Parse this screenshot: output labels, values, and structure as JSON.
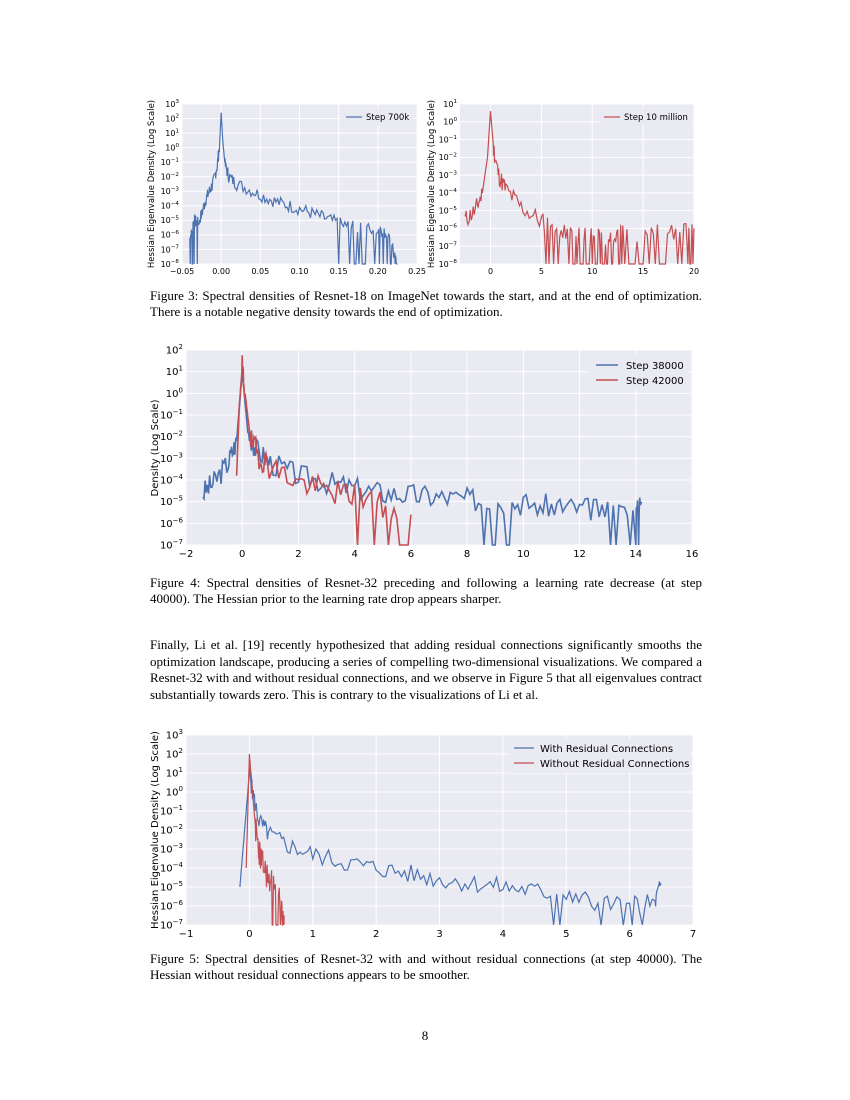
{
  "figure3": {
    "caption": "Figure 3: Spectral densities of Resnet-18 on ImageNet towards the start, and at the end of optimization. There is a notable negative density towards the end of optimization.",
    "left_panel": {
      "ylabel": "Hessian Eigenvalue Density (Log Scale)",
      "legend": "Step 700k",
      "color": "#4c72b0",
      "x_ticks": [
        "-0.05",
        "0.00",
        "0.05",
        "0.10",
        "0.15",
        "0.20",
        "0.25"
      ],
      "y_ticks": [
        "10^-8",
        "10^-7",
        "10^-6",
        "10^-5",
        "10^-4",
        "10^-3",
        "10^-2",
        "10^-1",
        "10^0",
        "10^1",
        "10^2",
        "10^3"
      ]
    },
    "right_panel": {
      "ylabel": "Hessian Eigenvalue Density (Log Scale)",
      "legend": "Step 10 million",
      "color": "#c44e52",
      "x_ticks": [
        "0",
        "5",
        "10",
        "15",
        "20"
      ],
      "y_ticks": [
        "10^-8",
        "10^-7",
        "10^-6",
        "10^-5",
        "10^-4",
        "10^-3",
        "10^-2",
        "10^-1",
        "10^0",
        "10^1"
      ]
    }
  },
  "figure4": {
    "caption": "Figure 4: Spectral densities of Resnet-32 preceding and following a learning rate decrease (at step 40000). The Hessian prior to the learning rate drop appears sharper.",
    "ylabel": "Density (Log Scale)",
    "legend": [
      {
        "label": "Step 38000",
        "color": "#4c72b0"
      },
      {
        "label": "Step 42000",
        "color": "#c44e52"
      }
    ],
    "x_ticks": [
      "-2",
      "0",
      "2",
      "4",
      "6",
      "8",
      "10",
      "12",
      "14",
      "16"
    ],
    "y_ticks": [
      "10^-7",
      "10^-6",
      "10^-5",
      "10^-4",
      "10^-3",
      "10^-2",
      "10^-1",
      "10^0",
      "10^1",
      "10^2"
    ]
  },
  "paragraph": "Finally, Li et al. [19] recently hypothesized that adding residual connections significantly smooths the optimization landscape, producing a series of compelling two-dimensional visualizations. We compared a Resnet-32 with and without residual connections, and we observe in Figure 5 that all eigenvalues contract substantially towards zero. This is contrary to the visualizations of Li et al.",
  "figure5": {
    "caption": "Figure 5: Spectral densities of Resnet-32 with and without residual connections (at step 40000). The Hessian without residual connections appears to be smoother.",
    "ylabel": "Hessian Eigenvalue Density (Log Scale)",
    "legend": [
      {
        "label": "With Residual Connections",
        "color": "#4c72b0"
      },
      {
        "label": "Without Residual Connections",
        "color": "#c44e52"
      }
    ],
    "x_ticks": [
      "-1",
      "0",
      "1",
      "2",
      "3",
      "4",
      "5",
      "6",
      "7"
    ],
    "y_ticks": [
      "10^-7",
      "10^-6",
      "10^-5",
      "10^-4",
      "10^-3",
      "10^-2",
      "10^-1",
      "10^0",
      "10^1",
      "10^2",
      "10^3"
    ]
  },
  "page_number": "8",
  "chart_data": [
    {
      "type": "line",
      "ylabel": "Hessian Eigenvalue Density (Log Scale)",
      "xlim": [
        -0.05,
        0.25
      ],
      "ylim": [
        -8,
        3
      ],
      "yscale": "log",
      "series": [
        {
          "name": "Step 700k",
          "color": "#4c72b0",
          "x": [
            -0.04,
            -0.035,
            -0.03,
            -0.025,
            -0.02,
            -0.015,
            -0.01,
            -0.005,
            -0.002,
            0.0,
            0.002,
            0.005,
            0.01,
            0.02,
            0.04,
            0.06,
            0.08,
            0.1,
            0.12,
            0.14,
            0.16,
            0.18,
            0.2,
            0.21,
            0.22,
            0.225
          ],
          "y": [
            -6.2,
            -5.0,
            -5.2,
            -4.6,
            -3.6,
            -3.0,
            -2.4,
            -1.2,
            0.2,
            2.4,
            0.5,
            -1.2,
            -2.0,
            -2.5,
            -3.0,
            -3.5,
            -3.9,
            -4.2,
            -4.6,
            -5.0,
            -5.4,
            -5.6,
            -5.6,
            -5.8,
            -7.2,
            -8.0
          ]
        }
      ],
      "legend": "top-right"
    },
    {
      "type": "line",
      "ylabel": "Hessian Eigenvalue Density (Log Scale)",
      "xlim": [
        -3,
        20
      ],
      "ylim": [
        -8,
        1
      ],
      "yscale": "log",
      "series": [
        {
          "name": "Step 10 million",
          "color": "#c44e52",
          "x": [
            -2.5,
            -1.5,
            -0.8,
            -0.3,
            0.0,
            0.3,
            0.8,
            1.5,
            3,
            5,
            6.5,
            8,
            9,
            10,
            11,
            12,
            13,
            15,
            17,
            19,
            20
          ],
          "y": [
            -5.5,
            -5.0,
            -4.0,
            -2.0,
            0.6,
            -1.5,
            -3.0,
            -3.8,
            -4.8,
            -5.6,
            -6.0,
            -6.2,
            -6.5,
            -6.3,
            -6.5,
            -6.3,
            -6.3,
            -6.3,
            -6.3,
            -6.3,
            -6.0
          ]
        }
      ],
      "legend": "top-right"
    },
    {
      "type": "line",
      "ylabel": "Density (Log Scale)",
      "xlim": [
        -2,
        16
      ],
      "ylim": [
        -7,
        2
      ],
      "yscale": "log",
      "series": [
        {
          "name": "Step 38000",
          "color": "#4c72b0",
          "x": [
            -1.4,
            -1.0,
            -0.5,
            -0.2,
            0.0,
            0.2,
            0.5,
            1,
            2,
            3,
            4,
            5,
            6,
            7,
            8,
            9,
            10,
            11,
            12,
            13,
            14,
            14.2
          ],
          "y": [
            -4.6,
            -4.1,
            -3.2,
            -2.2,
            1.0,
            -1.8,
            -2.6,
            -3.2,
            -3.8,
            -4.1,
            -4.4,
            -4.6,
            -4.7,
            -4.8,
            -4.9,
            -5.0,
            -5.1,
            -5.2,
            -5.3,
            -5.4,
            -5.6,
            -5.0
          ]
        },
        {
          "name": "Step 42000",
          "color": "#c44e52",
          "x": [
            -0.2,
            -0.1,
            0.0,
            0.1,
            0.3,
            0.6,
            1,
            2,
            3,
            4,
            5,
            6
          ],
          "y": [
            -3.8,
            -0.5,
            1.2,
            0.0,
            -2.2,
            -2.9,
            -3.4,
            -4.1,
            -4.5,
            -4.7,
            -5.2,
            -5.6
          ]
        }
      ],
      "legend": "top-right"
    },
    {
      "type": "line",
      "ylabel": "Hessian Eigenvalue Density (Log Scale)",
      "xlim": [
        -1,
        7
      ],
      "ylim": [
        -7,
        3
      ],
      "yscale": "log",
      "series": [
        {
          "name": "With Residual Connections",
          "color": "#4c72b0",
          "x": [
            -0.15,
            -0.05,
            0.0,
            0.05,
            0.15,
            0.3,
            0.6,
            1,
            1.5,
            2,
            2.5,
            3,
            3.5,
            4,
            4.5,
            5,
            5.5,
            6,
            6.4,
            6.5
          ],
          "y": [
            -5.0,
            -1.0,
            1.0,
            0.0,
            -1.5,
            -2.2,
            -2.8,
            -3.3,
            -3.7,
            -4.0,
            -4.3,
            -4.6,
            -4.8,
            -5.0,
            -5.2,
            -5.5,
            -5.8,
            -6.0,
            -5.8,
            -4.8
          ]
        },
        {
          "name": "Without Residual Connections",
          "color": "#c44e52",
          "x": [
            -0.05,
            0.0,
            0.05,
            0.1,
            0.15,
            0.2,
            0.3,
            0.4,
            0.5,
            0.55
          ],
          "y": [
            -4.0,
            2.0,
            0.0,
            -2.0,
            -3.0,
            -3.8,
            -4.5,
            -5.2,
            -5.8,
            -6.5
          ]
        }
      ],
      "legend": "top-right"
    }
  ]
}
